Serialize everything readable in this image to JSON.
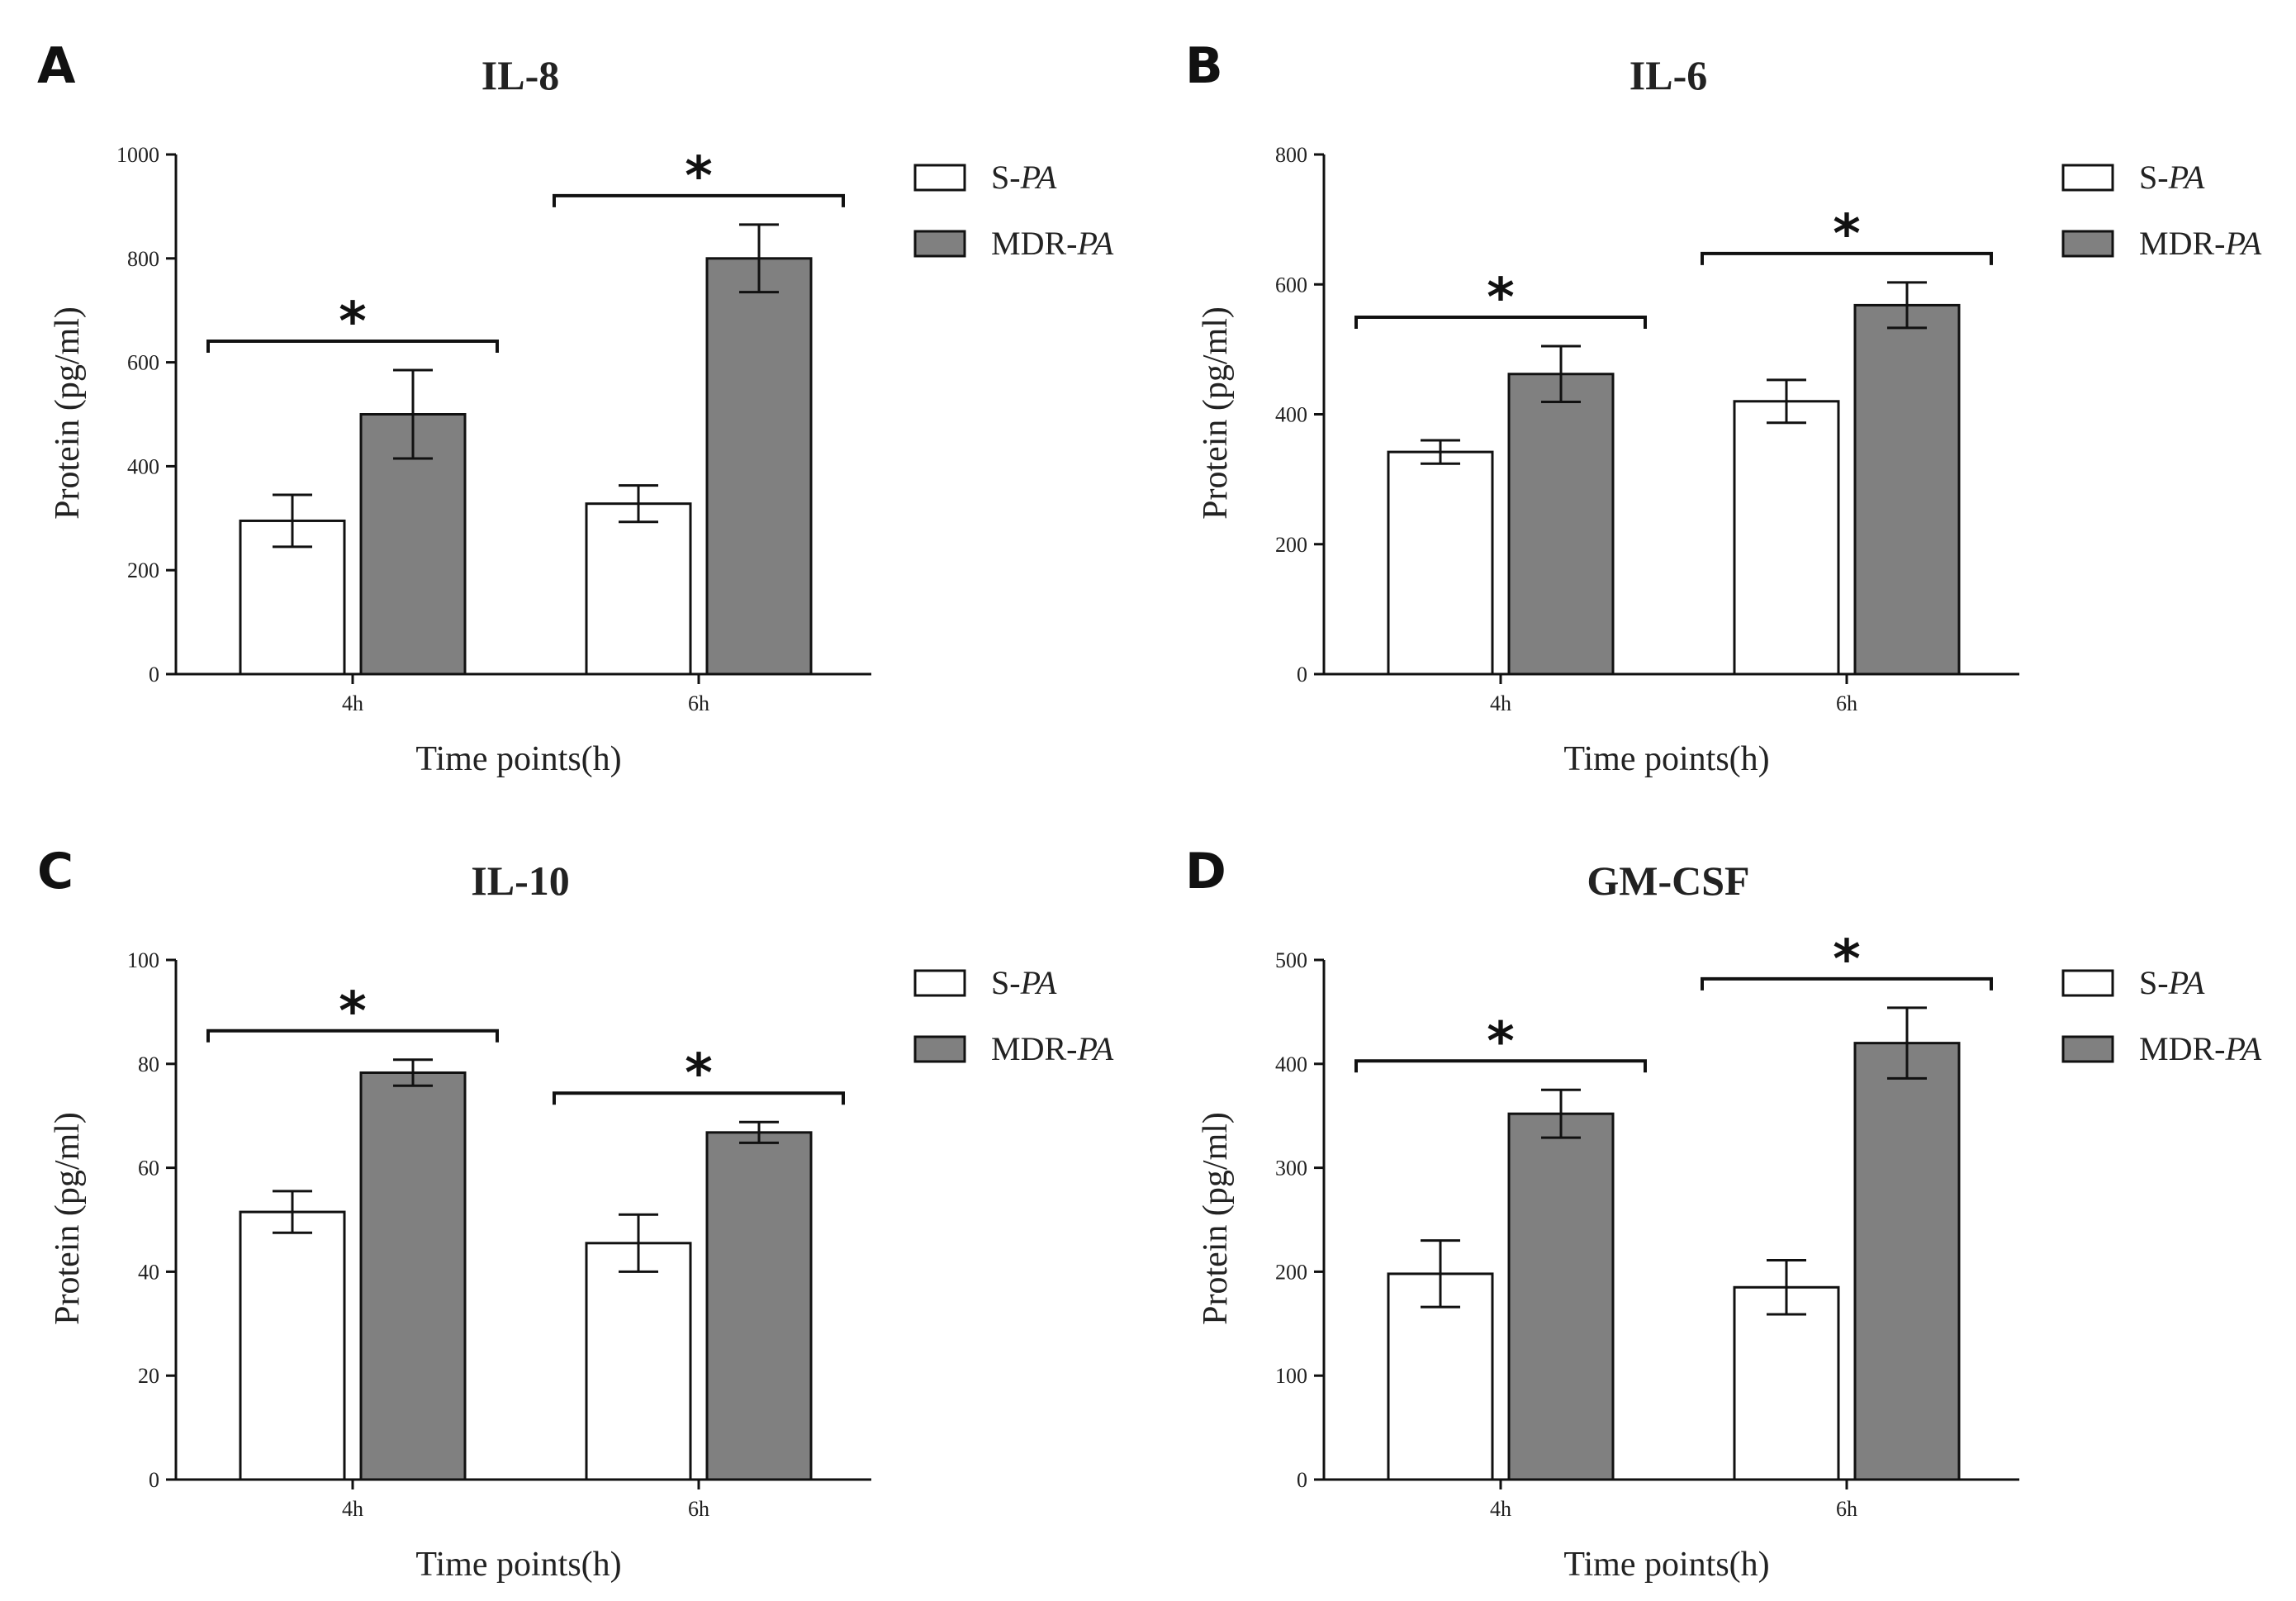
{
  "colors": {
    "s_pa": "#ffffff",
    "mdr_pa": "#808080",
    "stroke": "#111111"
  },
  "legend_series_prefix": [
    "S-",
    "MDR-"
  ],
  "legend_series_italic": [
    "PA",
    "PA"
  ],
  "chart_data": [
    {
      "panel": "A",
      "type": "bar",
      "title": "IL-8",
      "xlabel": "Time points(h)",
      "ylabel": "Protein (pg/ml)",
      "categories": [
        "4h",
        "6h"
      ],
      "ylim": [
        0,
        1000
      ],
      "yticks": [
        0,
        200,
        400,
        600,
        800,
        1000
      ],
      "series": [
        {
          "name": "S-PA",
          "values": [
            295,
            328
          ],
          "errors": [
            50,
            35
          ]
        },
        {
          "name": "MDR-PA",
          "values": [
            500,
            800
          ],
          "errors": [
            85,
            65
          ]
        }
      ],
      "significance": [
        "*",
        "*"
      ]
    },
    {
      "panel": "B",
      "type": "bar",
      "title": "IL-6",
      "xlabel": "Time points(h)",
      "ylabel": "Protein (pg/ml)",
      "categories": [
        "4h",
        "6h"
      ],
      "ylim": [
        0,
        800
      ],
      "yticks": [
        0,
        200,
        400,
        600,
        800
      ],
      "series": [
        {
          "name": "S-PA",
          "values": [
            342,
            420
          ],
          "errors": [
            18,
            33
          ]
        },
        {
          "name": "MDR-PA",
          "values": [
            462,
            568
          ],
          "errors": [
            43,
            35
          ]
        }
      ],
      "significance": [
        "*",
        "*"
      ]
    },
    {
      "panel": "C",
      "type": "bar",
      "title": "IL-10",
      "xlabel": "Time points(h)",
      "ylabel": "Protein (pg/ml)",
      "categories": [
        "4h",
        "6h"
      ],
      "ylim": [
        0,
        100
      ],
      "yticks": [
        0,
        20,
        40,
        60,
        80,
        100
      ],
      "series": [
        {
          "name": "S-PA",
          "values": [
            51.5,
            45.5
          ],
          "errors": [
            4,
            5.5
          ]
        },
        {
          "name": "MDR-PA",
          "values": [
            78.3,
            66.8
          ],
          "errors": [
            2.5,
            2
          ]
        }
      ],
      "significance": [
        "*",
        "*"
      ]
    },
    {
      "panel": "D",
      "type": "bar",
      "title": "GM-CSF",
      "xlabel": "Time points(h)",
      "ylabel": "Protein (pg/ml)",
      "categories": [
        "4h",
        "6h"
      ],
      "ylim": [
        0,
        500
      ],
      "yticks": [
        0,
        100,
        200,
        300,
        400,
        500
      ],
      "series": [
        {
          "name": "S-PA",
          "values": [
            198,
            185
          ],
          "errors": [
            32,
            26
          ]
        },
        {
          "name": "MDR-PA",
          "values": [
            352,
            420
          ],
          "errors": [
            23,
            34
          ]
        }
      ],
      "significance": [
        "*",
        "*"
      ]
    }
  ]
}
